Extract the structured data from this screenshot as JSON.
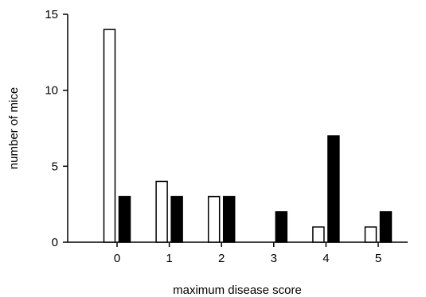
{
  "chart_data": {
    "type": "bar",
    "title": "",
    "xlabel": "maximum disease score",
    "ylabel": "number of mice",
    "categories": [
      "0",
      "1",
      "2",
      "3",
      "4",
      "5"
    ],
    "ylim": [
      0,
      15
    ],
    "yticks": [
      0,
      5,
      10,
      15
    ],
    "grid": false,
    "legend": "none",
    "series": [
      {
        "values": [
          14,
          4,
          3,
          0,
          1,
          1
        ],
        "fill": "#ffffff",
        "stroke": "#000000"
      },
      {
        "values": [
          3,
          3,
          3,
          2,
          7,
          2
        ],
        "fill": "#000000",
        "stroke": "#000000"
      }
    ]
  }
}
